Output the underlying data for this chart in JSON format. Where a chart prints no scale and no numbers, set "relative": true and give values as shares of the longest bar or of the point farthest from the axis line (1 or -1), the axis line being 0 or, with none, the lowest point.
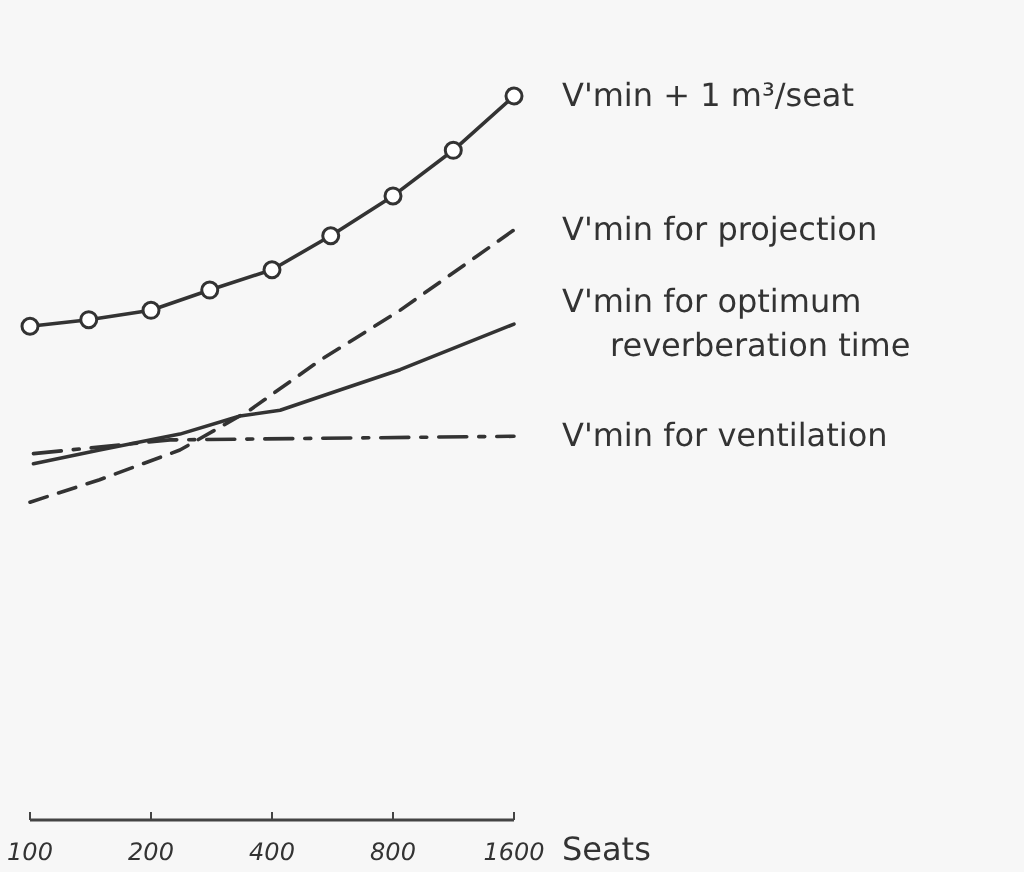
{
  "chart_data": {
    "type": "line",
    "relative": true,
    "log": "x",
    "xlabel": "Seats",
    "xlim": [
      100,
      1600
    ],
    "xticks": [
      100,
      200,
      400,
      800,
      1600
    ],
    "grid": false,
    "series": [
      {
        "name": "V'min + 1 m³/seat",
        "color": "#333333",
        "marker": "circle",
        "line_style": "solid",
        "x": [
          100,
          140,
          200,
          280,
          400,
          560,
          800,
          1130,
          1600
        ],
        "values": [
          0.682,
          0.691,
          0.704,
          0.732,
          0.76,
          0.807,
          0.862,
          0.925,
          1
        ]
      },
      {
        "name": "V'min for projection",
        "color": "#333333",
        "marker": "none",
        "line_style": "dashed",
        "x": [
          100,
          149,
          236,
          352,
          527,
          833,
          1600
        ],
        "values": [
          0.439,
          0.47,
          0.511,
          0.566,
          0.635,
          0.704,
          0.815
        ]
      },
      {
        "name": "V'min for optimum reverberation time",
        "color": "#333333",
        "marker": "none",
        "line_style": "solid",
        "x": [
          102,
          149,
          236,
          333,
          419,
          590,
          833,
          1600
        ],
        "values": [
          0.492,
          0.511,
          0.533,
          0.558,
          0.566,
          0.594,
          0.622,
          0.685
        ]
      },
      {
        "name": "V'min for ventilation",
        "color": "#333333",
        "marker": "none",
        "line_style": "dashdot",
        "x": [
          102,
          223,
          1600
        ],
        "values": [
          0.506,
          0.525,
          0.53
        ]
      }
    ]
  }
}
